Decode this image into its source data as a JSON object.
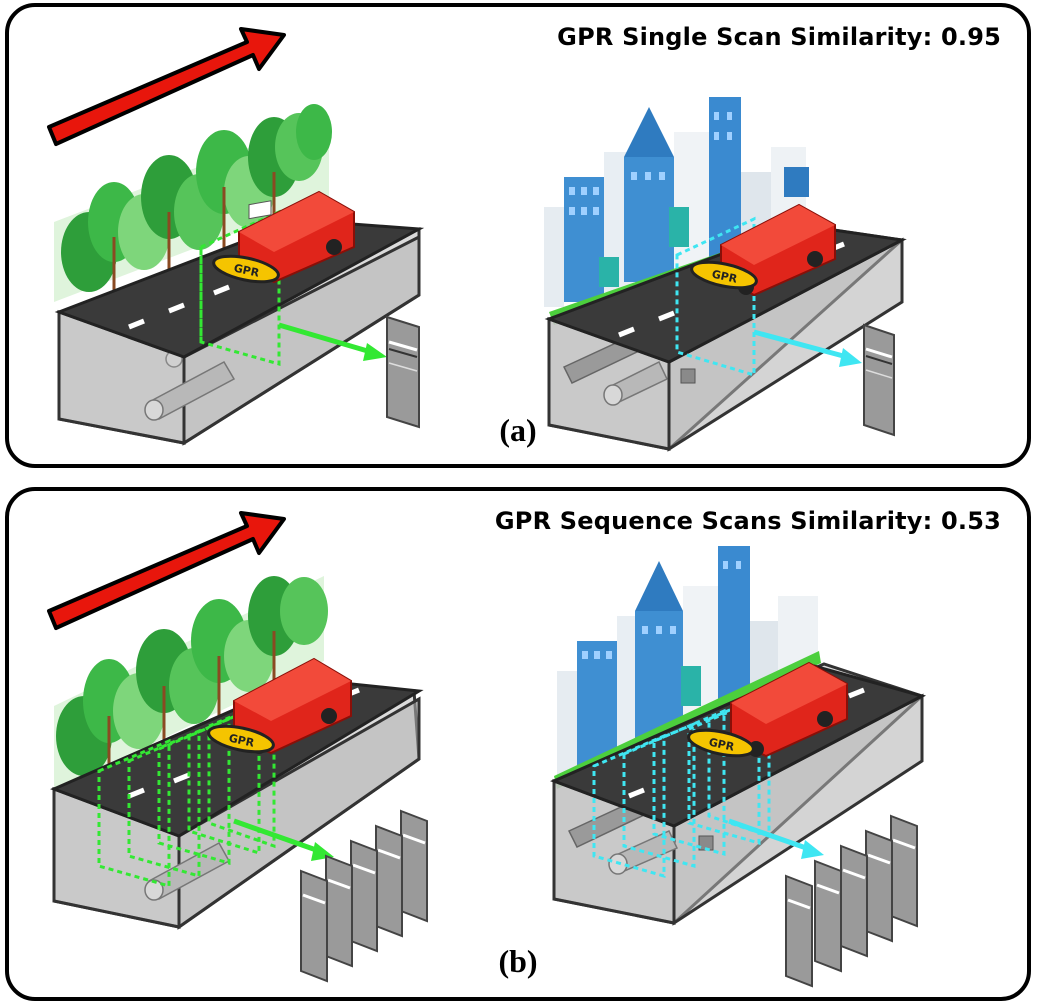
{
  "panels": [
    {
      "title": "GPR Single Scan Similarity: 0.95",
      "label": "(a)",
      "gpr_badge_text": "GPR"
    },
    {
      "title": "GPR Sequence Scans Similarity: 0.53",
      "label": "(b)",
      "gpr_badge_text": "GPR"
    }
  ],
  "colors": {
    "direction_arrow": "#e8160c",
    "forest_scan": "#33e833",
    "city_scan": "#3fe6f2",
    "road": "#3a3a3a",
    "underground_box": "#c9c9c9",
    "vehicle": "#e0251b",
    "gpr_badge": "#f5c400"
  },
  "icons": [
    "direction-arrow-icon",
    "tree-icon",
    "building-icon",
    "vehicle-icon",
    "pipe-icon",
    "radargram-icon"
  ]
}
